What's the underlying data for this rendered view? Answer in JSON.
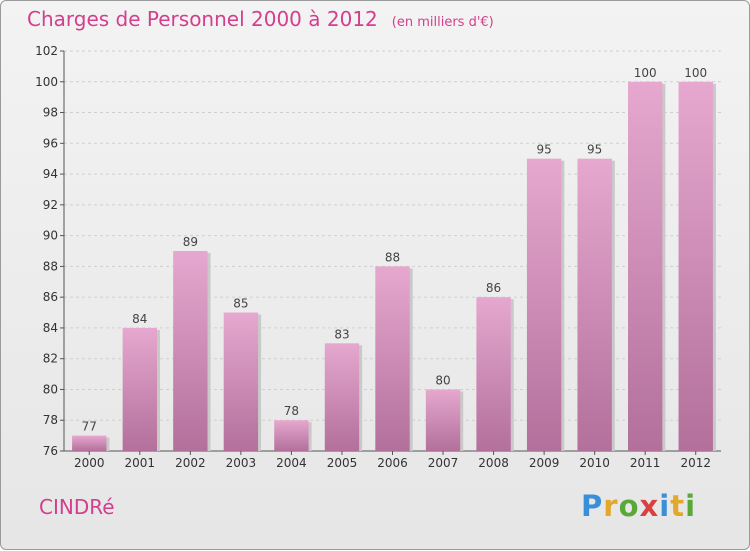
{
  "header": {
    "title": "Charges de Personnel 2000 à 2012",
    "subtitle": "(en milliers d'€)"
  },
  "commune": "CINDRé",
  "logo": {
    "text": "Proxiti",
    "letters": [
      {
        "ch": "P",
        "color": "#3a8fd6"
      },
      {
        "ch": "r",
        "color": "#e2a72b"
      },
      {
        "ch": "o",
        "color": "#5aa83a"
      },
      {
        "ch": "x",
        "color": "#d94040"
      },
      {
        "ch": "i",
        "color": "#3a8fd6"
      },
      {
        "ch": "t",
        "color": "#e2a72b"
      },
      {
        "ch": "i",
        "color": "#5aa83a"
      }
    ]
  },
  "colors": {
    "bar_top": "#e6a8cf",
    "bar_bottom": "#b2709b",
    "accent": "#d23f8c"
  },
  "chart_data": {
    "type": "bar",
    "title": "Charges de Personnel 2000 à 2012",
    "subtitle": "(en milliers d'€)",
    "categories": [
      "2000",
      "2001",
      "2002",
      "2003",
      "2004",
      "2005",
      "2006",
      "2007",
      "2008",
      "2009",
      "2010",
      "2011",
      "2012"
    ],
    "values": [
      77,
      84,
      89,
      85,
      78,
      83,
      88,
      80,
      86,
      95,
      95,
      100,
      100
    ],
    "ylim": [
      76,
      102
    ],
    "yticks": [
      76,
      78,
      80,
      82,
      84,
      86,
      88,
      90,
      92,
      94,
      96,
      98,
      100,
      102
    ],
    "grid": true,
    "data_labels": true
  }
}
